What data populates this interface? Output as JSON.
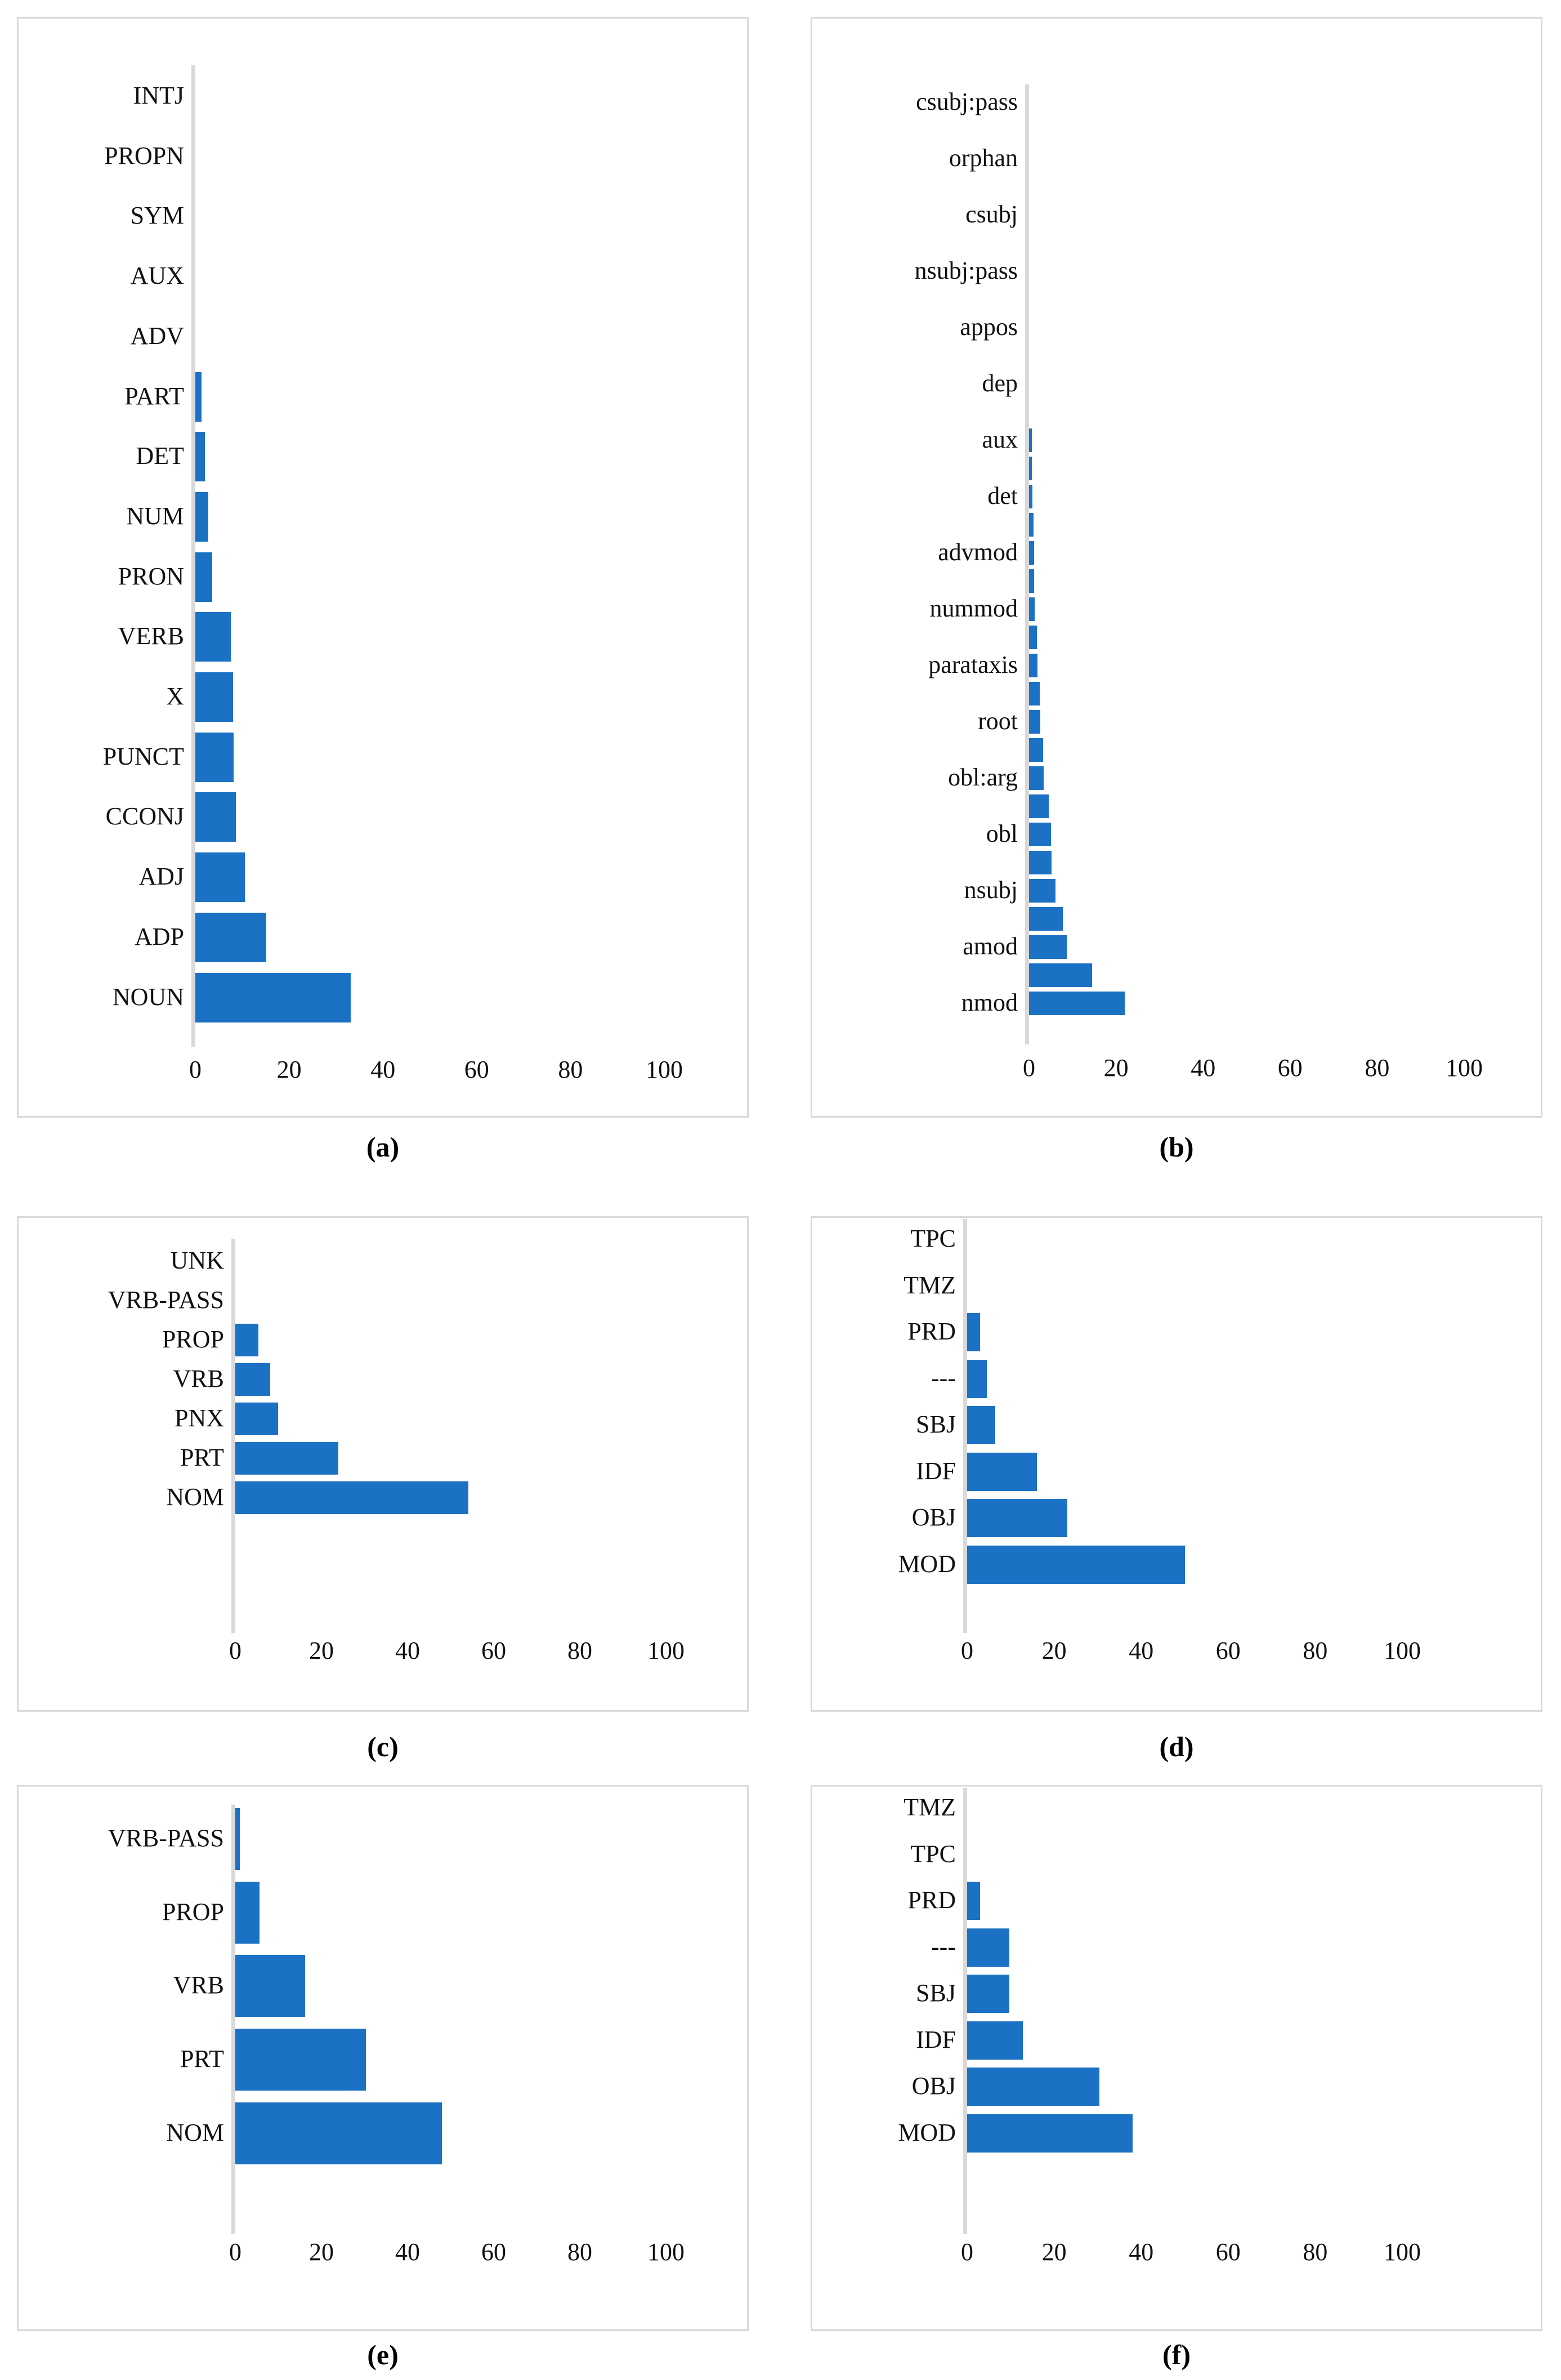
{
  "figure": {
    "background": "#ffffff",
    "bar_color": "#1b71c4",
    "panel_border_color": "#d9d9d9",
    "axis_line_color": "#d9d9d9",
    "text_color": "#111111"
  },
  "chart_data": [
    {
      "id": "a",
      "type": "bar",
      "orientation": "horizontal",
      "caption": "(a)",
      "title": "",
      "xlabel": "",
      "ylabel": "",
      "grid": false,
      "legend": null,
      "xlim": [
        0,
        110
      ],
      "xticks": [
        0,
        20,
        40,
        60,
        80,
        100
      ],
      "categories": [
        "INTJ",
        "PROPN",
        "SYM",
        "AUX",
        "ADV",
        "PART",
        "DET",
        "NUM",
        "PRON",
        "VERB",
        "X",
        "PUNCT",
        "CCONJ",
        "ADJ",
        "ADP",
        "NOUN"
      ],
      "values": [
        0,
        0,
        0,
        0,
        0,
        1.3,
        2.0,
        2.8,
        3.6,
        7.6,
        8.0,
        8.2,
        8.6,
        10.6,
        15.1,
        33.1
      ]
    },
    {
      "id": "b",
      "type": "bar",
      "orientation": "horizontal",
      "caption": "(b)",
      "title": "",
      "xlabel": "",
      "ylabel": "",
      "grid": false,
      "legend": null,
      "xlim": [
        0,
        110
      ],
      "xticks": [
        0,
        20,
        40,
        60,
        80,
        100
      ],
      "note": "only every other category is labeled on the axis; unlabeled rows shown as empty strings",
      "categories": [
        "csubj:pass",
        "",
        "orphan",
        "",
        "csubj",
        "",
        "nsubj:pass",
        "",
        "appos",
        "",
        "dep",
        "",
        "aux",
        "",
        "det",
        "",
        "advmod",
        "",
        "nummod",
        "",
        "parataxis",
        "",
        "root",
        "",
        "obl:arg",
        "",
        "obl",
        "",
        "nsubj",
        "",
        "amod",
        "",
        "nmod"
      ],
      "values": [
        0,
        0,
        0,
        0,
        0,
        0,
        0,
        0,
        0,
        0,
        0,
        0,
        0.6,
        0.7,
        0.8,
        1.0,
        1.1,
        1.2,
        1.3,
        1.8,
        1.9,
        2.5,
        2.6,
        3.2,
        3.4,
        4.5,
        5.0,
        5.2,
        6.1,
        7.8,
        8.7,
        14.5,
        22.0
      ]
    },
    {
      "id": "c",
      "type": "bar",
      "orientation": "horizontal",
      "caption": "(c)",
      "title": "",
      "xlabel": "",
      "ylabel": "",
      "grid": false,
      "legend": null,
      "xlim": [
        0,
        110
      ],
      "xticks": [
        0,
        20,
        40,
        60,
        80,
        100
      ],
      "categories": [
        "UNK",
        "VRB-PASS",
        "PROP",
        "VRB",
        "PNX",
        "PRT",
        "NOM"
      ],
      "values": [
        0,
        0,
        5.4,
        8.1,
        9.9,
        23.9,
        54.1
      ]
    },
    {
      "id": "d",
      "type": "bar",
      "orientation": "horizontal",
      "caption": "(d)",
      "title": "",
      "xlabel": "",
      "ylabel": "",
      "grid": false,
      "legend": null,
      "xlim": [
        0,
        110
      ],
      "xticks": [
        0,
        20,
        40,
        60,
        80,
        100
      ],
      "categories": [
        "TPC",
        "TMZ",
        "PRD",
        "---",
        "SBJ",
        "IDF",
        "OBJ",
        "MOD"
      ],
      "values": [
        0,
        0,
        3.0,
        4.5,
        6.5,
        16.0,
        23.0,
        50.0
      ]
    },
    {
      "id": "e",
      "type": "bar",
      "orientation": "horizontal",
      "caption": "(e)",
      "title": "",
      "xlabel": "",
      "ylabel": "",
      "grid": false,
      "legend": null,
      "xlim": [
        0,
        110
      ],
      "xticks": [
        0,
        20,
        40,
        60,
        80,
        100
      ],
      "categories": [
        "VRB-PASS",
        "PROP",
        "VRB",
        "PRT",
        "NOM"
      ],
      "values": [
        1.0,
        5.6,
        16.2,
        30.3,
        48.0
      ]
    },
    {
      "id": "f",
      "type": "bar",
      "orientation": "horizontal",
      "caption": "(f)",
      "title": "",
      "xlabel": "",
      "ylabel": "",
      "grid": false,
      "legend": null,
      "xlim": [
        0,
        110
      ],
      "xticks": [
        0,
        20,
        40,
        60,
        80,
        100
      ],
      "categories": [
        "TMZ",
        "TPC",
        "PRD",
        "---",
        "SBJ",
        "IDF",
        "OBJ",
        "MOD"
      ],
      "values": [
        0,
        0,
        3.0,
        9.7,
        9.7,
        12.8,
        30.4,
        38.0
      ]
    }
  ]
}
